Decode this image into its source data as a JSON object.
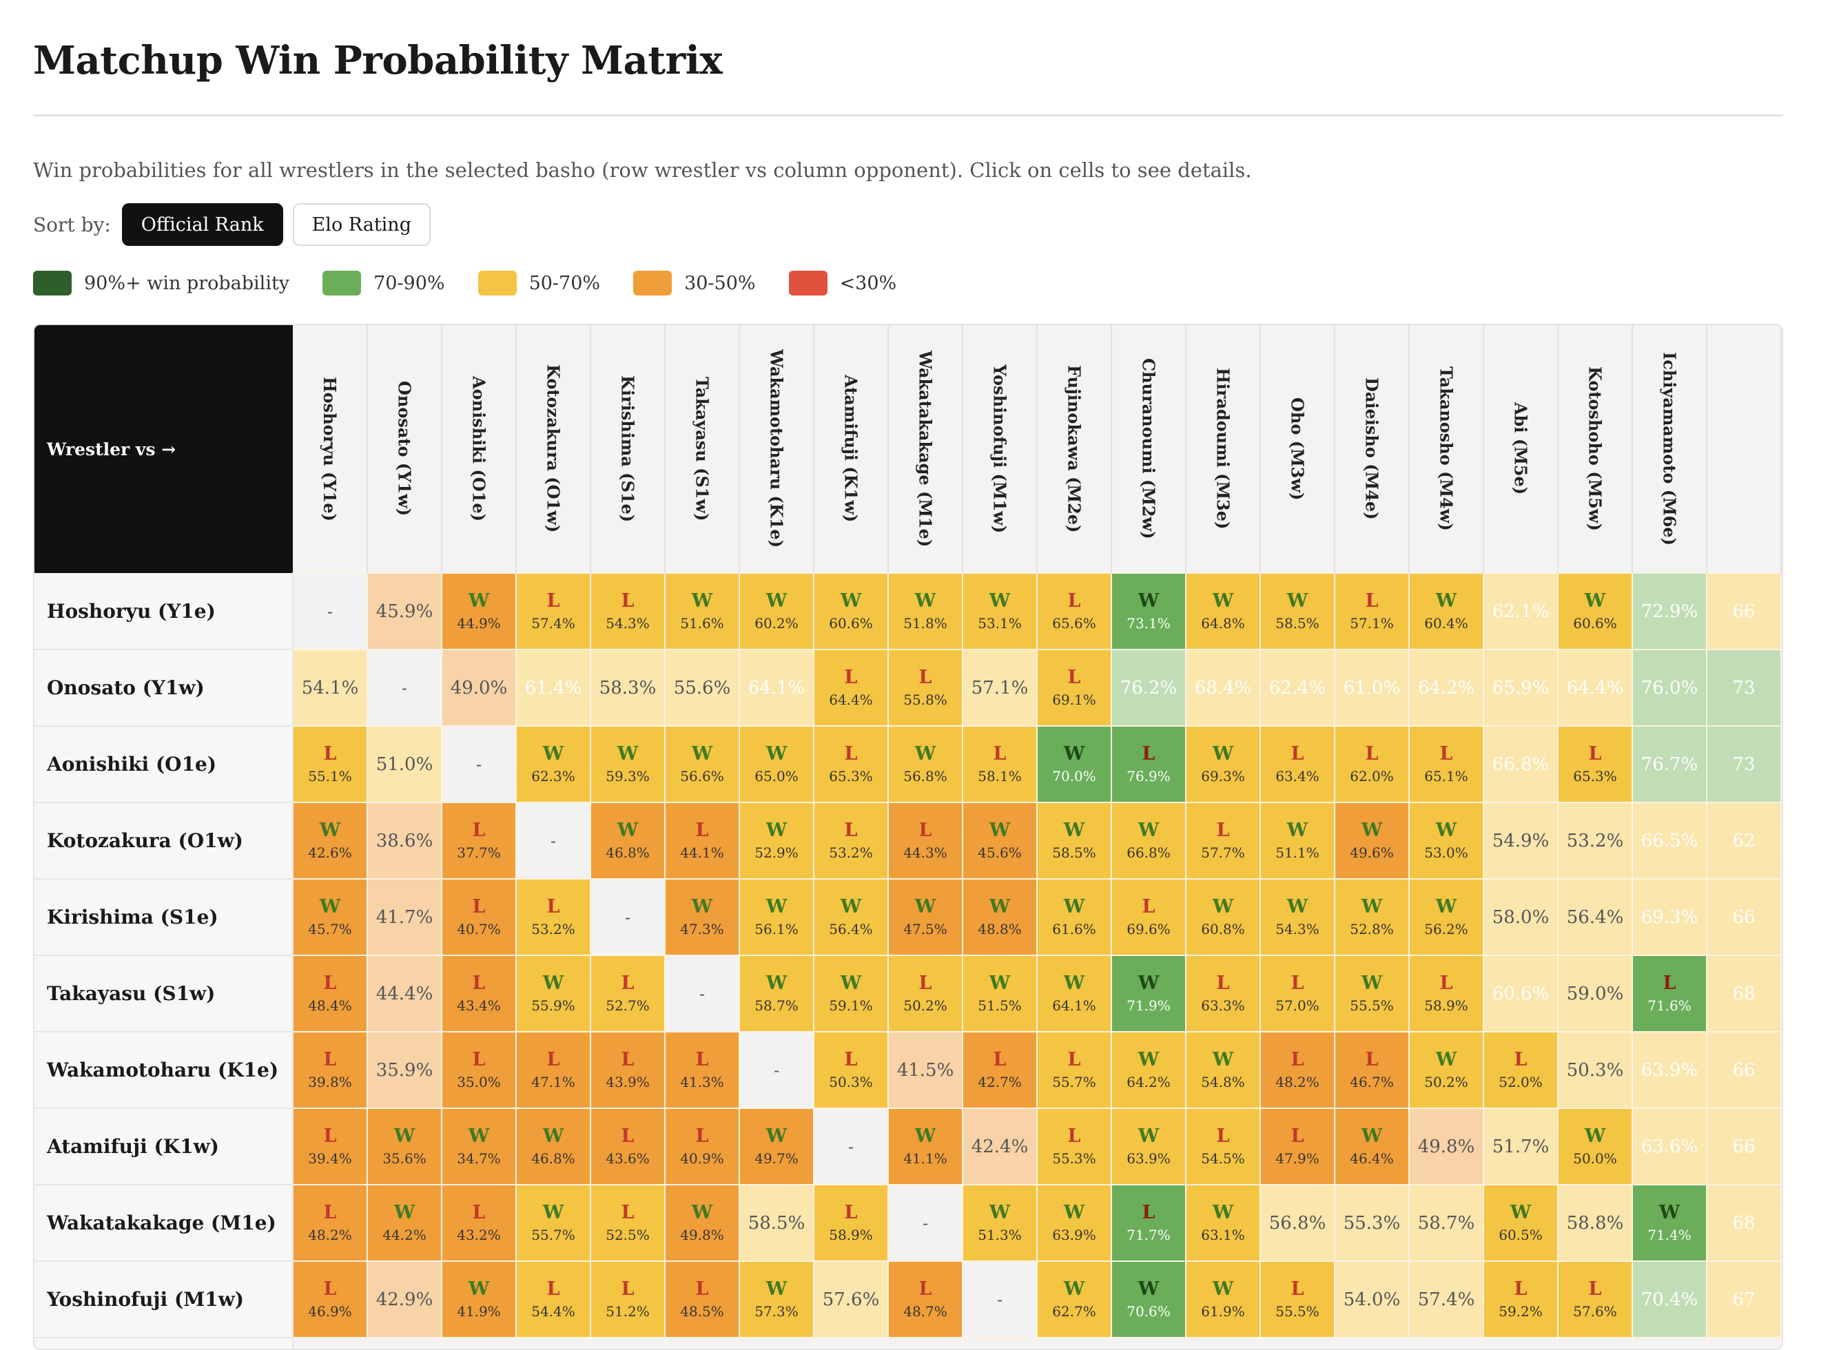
{
  "page": {
    "title": "Matchup Win Probability Matrix",
    "description": "Win probabilities for all wrestlers in the selected basho (row wrestler vs column opponent). Click on cells to see details."
  },
  "sort": {
    "label": "Sort by:",
    "options": [
      "Official Rank",
      "Elo Rating"
    ],
    "selected": "Official Rank"
  },
  "legend": [
    {
      "label": "90%+ win probability",
      "color": "#2e5e2a"
    },
    {
      "label": "70-90%",
      "color": "#6aae5a"
    },
    {
      "label": "50-70%",
      "color": "#f4c443"
    },
    {
      "label": "30-50%",
      "color": "#f09e3a"
    },
    {
      "label": "<30%",
      "color": "#e0513e"
    }
  ],
  "colors": {
    "win_text": "#3f7a22",
    "loss_text": "#c0392b",
    "faded_yellow": "#fbe6ae",
    "faded_orange": "#f8d3a8",
    "faded_green": "#c0ddb5",
    "diagonal": "#f2f2f2"
  },
  "matrix": {
    "corner_label": "Wrestler vs →",
    "columns": [
      "Hoshoryu (Y1e)",
      "Onosato (Y1w)",
      "Aonishiki (O1e)",
      "Kotozakura (O1w)",
      "Kirishima (S1e)",
      "Takayasu (S1w)",
      "Wakamotoharu (K1e)",
      "Atamifuji (K1w)",
      "Wakatakakage (M1e)",
      "Yoshinofuji (M1w)",
      "Fujinokawa (M2e)",
      "Churanoumi (M2w)",
      "Hiradoumi (M3e)",
      "Oho (M3w)",
      "Daieisho (M4e)",
      "Takanosho (M4w)",
      "Abi (M5e)",
      "Kotoshoho (M5w)",
      "Ichiyamamoto (M6e)",
      ""
    ],
    "rows": [
      {
        "name": "Hoshoryu (Y1e)",
        "cells": [
          {
            "r": "",
            "p": "-"
          },
          {
            "r": "",
            "p": "45.9%"
          },
          {
            "r": "W",
            "p": "44.9%"
          },
          {
            "r": "L",
            "p": "57.4%"
          },
          {
            "r": "L",
            "p": "54.3%"
          },
          {
            "r": "W",
            "p": "51.6%"
          },
          {
            "r": "W",
            "p": "60.2%"
          },
          {
            "r": "W",
            "p": "60.6%"
          },
          {
            "r": "W",
            "p": "51.8%"
          },
          {
            "r": "W",
            "p": "53.1%"
          },
          {
            "r": "L",
            "p": "65.6%"
          },
          {
            "r": "W",
            "p": "73.1%"
          },
          {
            "r": "W",
            "p": "64.8%"
          },
          {
            "r": "W",
            "p": "58.5%"
          },
          {
            "r": "L",
            "p": "57.1%"
          },
          {
            "r": "W",
            "p": "60.4%"
          },
          {
            "r": "",
            "p": "62.1%"
          },
          {
            "r": "W",
            "p": "60.6%"
          },
          {
            "r": "",
            "p": "72.9%"
          },
          {
            "r": "",
            "p": "66"
          }
        ]
      },
      {
        "name": "Onosato (Y1w)",
        "cells": [
          {
            "r": "",
            "p": "54.1%"
          },
          {
            "r": "",
            "p": "-"
          },
          {
            "r": "",
            "p": "49.0%"
          },
          {
            "r": "",
            "p": "61.4%"
          },
          {
            "r": "",
            "p": "58.3%"
          },
          {
            "r": "",
            "p": "55.6%"
          },
          {
            "r": "",
            "p": "64.1%"
          },
          {
            "r": "L",
            "p": "64.4%"
          },
          {
            "r": "L",
            "p": "55.8%"
          },
          {
            "r": "",
            "p": "57.1%"
          },
          {
            "r": "L",
            "p": "69.1%"
          },
          {
            "r": "",
            "p": "76.2%"
          },
          {
            "r": "",
            "p": "68.4%"
          },
          {
            "r": "",
            "p": "62.4%"
          },
          {
            "r": "",
            "p": "61.0%"
          },
          {
            "r": "",
            "p": "64.2%"
          },
          {
            "r": "",
            "p": "65.9%"
          },
          {
            "r": "",
            "p": "64.4%"
          },
          {
            "r": "",
            "p": "76.0%"
          },
          {
            "r": "",
            "p": "73"
          }
        ]
      },
      {
        "name": "Aonishiki (O1e)",
        "cells": [
          {
            "r": "L",
            "p": "55.1%"
          },
          {
            "r": "",
            "p": "51.0%"
          },
          {
            "r": "",
            "p": "-"
          },
          {
            "r": "W",
            "p": "62.3%"
          },
          {
            "r": "W",
            "p": "59.3%"
          },
          {
            "r": "W",
            "p": "56.6%"
          },
          {
            "r": "W",
            "p": "65.0%"
          },
          {
            "r": "L",
            "p": "65.3%"
          },
          {
            "r": "W",
            "p": "56.8%"
          },
          {
            "r": "L",
            "p": "58.1%"
          },
          {
            "r": "W",
            "p": "70.0%"
          },
          {
            "r": "L",
            "p": "76.9%"
          },
          {
            "r": "W",
            "p": "69.3%"
          },
          {
            "r": "L",
            "p": "63.4%"
          },
          {
            "r": "L",
            "p": "62.0%"
          },
          {
            "r": "L",
            "p": "65.1%"
          },
          {
            "r": "",
            "p": "66.8%"
          },
          {
            "r": "L",
            "p": "65.3%"
          },
          {
            "r": "",
            "p": "76.7%"
          },
          {
            "r": "",
            "p": "73"
          }
        ]
      },
      {
        "name": "Kotozakura (O1w)",
        "cells": [
          {
            "r": "W",
            "p": "42.6%"
          },
          {
            "r": "",
            "p": "38.6%"
          },
          {
            "r": "L",
            "p": "37.7%"
          },
          {
            "r": "",
            "p": "-"
          },
          {
            "r": "W",
            "p": "46.8%"
          },
          {
            "r": "L",
            "p": "44.1%"
          },
          {
            "r": "W",
            "p": "52.9%"
          },
          {
            "r": "L",
            "p": "53.2%"
          },
          {
            "r": "L",
            "p": "44.3%"
          },
          {
            "r": "W",
            "p": "45.6%"
          },
          {
            "r": "W",
            "p": "58.5%"
          },
          {
            "r": "W",
            "p": "66.8%"
          },
          {
            "r": "L",
            "p": "57.7%"
          },
          {
            "r": "W",
            "p": "51.1%"
          },
          {
            "r": "W",
            "p": "49.6%"
          },
          {
            "r": "W",
            "p": "53.0%"
          },
          {
            "r": "",
            "p": "54.9%"
          },
          {
            "r": "",
            "p": "53.2%"
          },
          {
            "r": "",
            "p": "66.5%"
          },
          {
            "r": "",
            "p": "62"
          }
        ]
      },
      {
        "name": "Kirishima (S1e)",
        "cells": [
          {
            "r": "W",
            "p": "45.7%"
          },
          {
            "r": "",
            "p": "41.7%"
          },
          {
            "r": "L",
            "p": "40.7%"
          },
          {
            "r": "L",
            "p": "53.2%"
          },
          {
            "r": "",
            "p": "-"
          },
          {
            "r": "W",
            "p": "47.3%"
          },
          {
            "r": "W",
            "p": "56.1%"
          },
          {
            "r": "W",
            "p": "56.4%"
          },
          {
            "r": "W",
            "p": "47.5%"
          },
          {
            "r": "W",
            "p": "48.8%"
          },
          {
            "r": "W",
            "p": "61.6%"
          },
          {
            "r": "L",
            "p": "69.6%"
          },
          {
            "r": "W",
            "p": "60.8%"
          },
          {
            "r": "W",
            "p": "54.3%"
          },
          {
            "r": "W",
            "p": "52.8%"
          },
          {
            "r": "W",
            "p": "56.2%"
          },
          {
            "r": "",
            "p": "58.0%"
          },
          {
            "r": "",
            "p": "56.4%"
          },
          {
            "r": "",
            "p": "69.3%"
          },
          {
            "r": "",
            "p": "66"
          }
        ]
      },
      {
        "name": "Takayasu (S1w)",
        "cells": [
          {
            "r": "L",
            "p": "48.4%"
          },
          {
            "r": "",
            "p": "44.4%"
          },
          {
            "r": "L",
            "p": "43.4%"
          },
          {
            "r": "W",
            "p": "55.9%"
          },
          {
            "r": "L",
            "p": "52.7%"
          },
          {
            "r": "",
            "p": "-"
          },
          {
            "r": "W",
            "p": "58.7%"
          },
          {
            "r": "W",
            "p": "59.1%"
          },
          {
            "r": "L",
            "p": "50.2%"
          },
          {
            "r": "W",
            "p": "51.5%"
          },
          {
            "r": "W",
            "p": "64.1%"
          },
          {
            "r": "W",
            "p": "71.9%"
          },
          {
            "r": "L",
            "p": "63.3%"
          },
          {
            "r": "L",
            "p": "57.0%"
          },
          {
            "r": "W",
            "p": "55.5%"
          },
          {
            "r": "L",
            "p": "58.9%"
          },
          {
            "r": "",
            "p": "60.6%"
          },
          {
            "r": "",
            "p": "59.0%"
          },
          {
            "r": "L",
            "p": "71.6%"
          },
          {
            "r": "",
            "p": "68"
          }
        ]
      },
      {
        "name": "Wakamotoharu (K1e)",
        "cells": [
          {
            "r": "L",
            "p": "39.8%"
          },
          {
            "r": "",
            "p": "35.9%"
          },
          {
            "r": "L",
            "p": "35.0%"
          },
          {
            "r": "L",
            "p": "47.1%"
          },
          {
            "r": "L",
            "p": "43.9%"
          },
          {
            "r": "L",
            "p": "41.3%"
          },
          {
            "r": "",
            "p": "-"
          },
          {
            "r": "L",
            "p": "50.3%"
          },
          {
            "r": "",
            "p": "41.5%"
          },
          {
            "r": "L",
            "p": "42.7%"
          },
          {
            "r": "L",
            "p": "55.7%"
          },
          {
            "r": "W",
            "p": "64.2%"
          },
          {
            "r": "W",
            "p": "54.8%"
          },
          {
            "r": "L",
            "p": "48.2%"
          },
          {
            "r": "L",
            "p": "46.7%"
          },
          {
            "r": "W",
            "p": "50.2%"
          },
          {
            "r": "L",
            "p": "52.0%"
          },
          {
            "r": "",
            "p": "50.3%"
          },
          {
            "r": "",
            "p": "63.9%"
          },
          {
            "r": "",
            "p": "66"
          }
        ]
      },
      {
        "name": "Atamifuji (K1w)",
        "cells": [
          {
            "r": "L",
            "p": "39.4%"
          },
          {
            "r": "W",
            "p": "35.6%"
          },
          {
            "r": "W",
            "p": "34.7%"
          },
          {
            "r": "W",
            "p": "46.8%"
          },
          {
            "r": "L",
            "p": "43.6%"
          },
          {
            "r": "L",
            "p": "40.9%"
          },
          {
            "r": "W",
            "p": "49.7%"
          },
          {
            "r": "",
            "p": "-"
          },
          {
            "r": "W",
            "p": "41.1%"
          },
          {
            "r": "",
            "p": "42.4%"
          },
          {
            "r": "L",
            "p": "55.3%"
          },
          {
            "r": "W",
            "p": "63.9%"
          },
          {
            "r": "L",
            "p": "54.5%"
          },
          {
            "r": "L",
            "p": "47.9%"
          },
          {
            "r": "W",
            "p": "46.4%"
          },
          {
            "r": "",
            "p": "49.8%"
          },
          {
            "r": "",
            "p": "51.7%"
          },
          {
            "r": "W",
            "p": "50.0%"
          },
          {
            "r": "",
            "p": "63.6%"
          },
          {
            "r": "",
            "p": "66"
          }
        ]
      },
      {
        "name": "Wakatakakage (M1e)",
        "cells": [
          {
            "r": "L",
            "p": "48.2%"
          },
          {
            "r": "W",
            "p": "44.2%"
          },
          {
            "r": "L",
            "p": "43.2%"
          },
          {
            "r": "W",
            "p": "55.7%"
          },
          {
            "r": "L",
            "p": "52.5%"
          },
          {
            "r": "W",
            "p": "49.8%"
          },
          {
            "r": "",
            "p": "58.5%"
          },
          {
            "r": "L",
            "p": "58.9%"
          },
          {
            "r": "",
            "p": "-"
          },
          {
            "r": "W",
            "p": "51.3%"
          },
          {
            "r": "W",
            "p": "63.9%"
          },
          {
            "r": "L",
            "p": "71.7%"
          },
          {
            "r": "W",
            "p": "63.1%"
          },
          {
            "r": "",
            "p": "56.8%"
          },
          {
            "r": "",
            "p": "55.3%"
          },
          {
            "r": "",
            "p": "58.7%"
          },
          {
            "r": "W",
            "p": "60.5%"
          },
          {
            "r": "",
            "p": "58.8%"
          },
          {
            "r": "W",
            "p": "71.4%"
          },
          {
            "r": "",
            "p": "68"
          }
        ]
      },
      {
        "name": "Yoshinofuji (M1w)",
        "cells": [
          {
            "r": "L",
            "p": "46.9%"
          },
          {
            "r": "",
            "p": "42.9%"
          },
          {
            "r": "W",
            "p": "41.9%"
          },
          {
            "r": "L",
            "p": "54.4%"
          },
          {
            "r": "L",
            "p": "51.2%"
          },
          {
            "r": "L",
            "p": "48.5%"
          },
          {
            "r": "W",
            "p": "57.3%"
          },
          {
            "r": "",
            "p": "57.6%"
          },
          {
            "r": "L",
            "p": "48.7%"
          },
          {
            "r": "",
            "p": "-"
          },
          {
            "r": "W",
            "p": "62.7%"
          },
          {
            "r": "W",
            "p": "70.6%"
          },
          {
            "r": "W",
            "p": "61.9%"
          },
          {
            "r": "L",
            "p": "55.5%"
          },
          {
            "r": "",
            "p": "54.0%"
          },
          {
            "r": "",
            "p": "57.4%"
          },
          {
            "r": "L",
            "p": "59.2%"
          },
          {
            "r": "L",
            "p": "57.6%"
          },
          {
            "r": "",
            "p": "70.4%"
          },
          {
            "r": "",
            "p": "67"
          }
        ]
      },
      {
        "name": "",
        "cells": [
          {
            "r": "",
            "p": ""
          },
          {
            "r": "",
            "p": ""
          },
          {
            "r": "",
            "p": ""
          },
          {
            "r": "",
            "p": ""
          },
          {
            "r": "",
            "p": ""
          },
          {
            "r": "",
            "p": ""
          },
          {
            "r": "",
            "p": ""
          },
          {
            "r": "",
            "p": ""
          },
          {
            "r": "",
            "p": ""
          },
          {
            "r": "",
            "p": ""
          },
          {
            "r": "",
            "p": ""
          },
          {
            "r": "",
            "p": ""
          },
          {
            "r": "",
            "p": ""
          },
          {
            "r": "",
            "p": ""
          },
          {
            "r": "",
            "p": ""
          },
          {
            "r": "",
            "p": ""
          },
          {
            "r": "",
            "p": ""
          },
          {
            "r": "",
            "p": ""
          },
          {
            "r": "",
            "p": ""
          },
          {
            "r": "",
            "p": ""
          }
        ]
      }
    ]
  }
}
